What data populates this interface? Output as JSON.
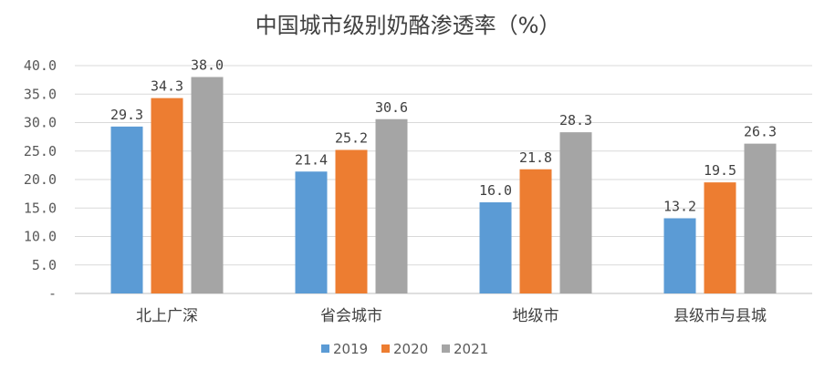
{
  "chart_data": {
    "type": "bar",
    "title": "中国城市级别奶酪渗透率（%）",
    "categories": [
      "北上广深",
      "省会城市",
      "地级市",
      "县级市与县城"
    ],
    "series": [
      {
        "name": "2019",
        "color": "#5b9bd5",
        "values": [
          29.3,
          21.4,
          16.0,
          13.2
        ],
        "labels": [
          "29.3",
          "21.4",
          "16.0",
          "13.2"
        ]
      },
      {
        "name": "2020",
        "color": "#ed7d31",
        "values": [
          34.3,
          25.2,
          21.8,
          19.5
        ],
        "labels": [
          "34.3",
          "25.2",
          "21.8",
          "19.5"
        ]
      },
      {
        "name": "2021",
        "color": "#a5a5a5",
        "values": [
          38.0,
          30.6,
          28.3,
          26.3
        ],
        "labels": [
          "38.0",
          "30.6",
          "28.3",
          "26.3"
        ]
      }
    ],
    "y_ticks": [
      "-",
      "5.0",
      "10.0",
      "15.0",
      "20.0",
      "25.0",
      "30.0",
      "35.0",
      "40.0"
    ],
    "ylim": [
      0,
      40
    ],
    "grid": true,
    "legend_position": "bottom"
  }
}
